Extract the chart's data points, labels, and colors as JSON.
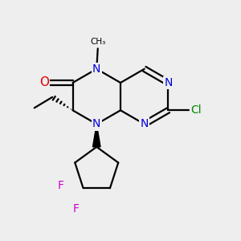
{
  "background_color": "#eeeeee",
  "atom_colors": {
    "N": "#0000dd",
    "O": "#dd0000",
    "Cl": "#008800",
    "F": "#cc00cc",
    "C": "#000000"
  },
  "figsize": [
    3.0,
    3.0
  ],
  "dpi": 100,
  "bond_lw": 1.6
}
